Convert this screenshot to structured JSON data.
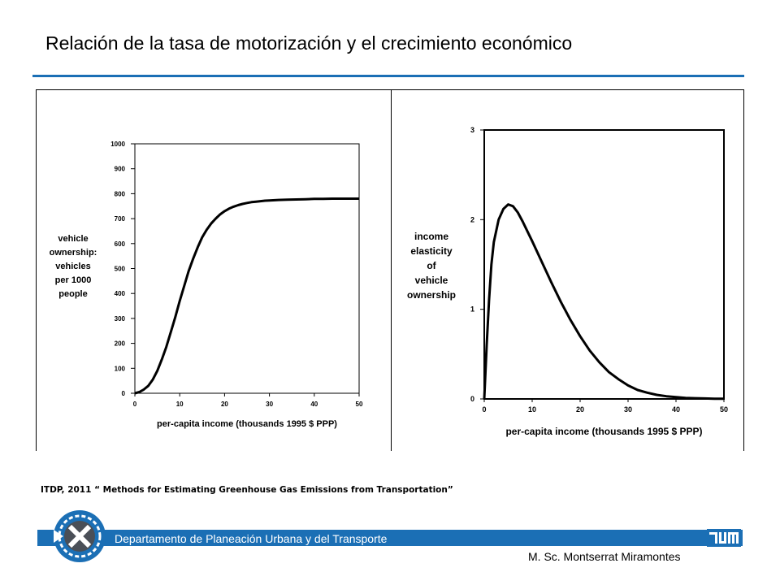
{
  "slide": {
    "title": "Relación de la tasa de motorización y el crecimiento económico",
    "citation": "ITDP, 2011 “ Methods for Estimating Greenhouse Gas Emissions from Transportation”",
    "footer_department": "Departamento de Planeación Urbana y del Transporte",
    "footer_author": "M. Sc. Montserrat Miramontes",
    "accent_color": "#1b6fb5",
    "logo_icon": "tum-logo-icon",
    "emblem_icon": "department-emblem-icon"
  },
  "chart_data": [
    {
      "type": "line",
      "ylabel_lines": [
        "vehicle",
        "ownership:",
        "vehicles",
        "per 1000",
        "people"
      ],
      "xlabel": "per-capita income (thousands 1995 $ PPP)",
      "x_ticks": [
        "0",
        "10",
        "20",
        "30",
        "40",
        "50"
      ],
      "y_ticks": [
        "0",
        "100",
        "200",
        "300",
        "400",
        "500",
        "600",
        "700",
        "800",
        "900",
        "1000"
      ],
      "xlim": [
        0,
        50
      ],
      "ylim": [
        0,
        1000
      ],
      "grid": false,
      "series": [
        {
          "x": [
            0,
            1,
            2,
            3,
            4,
            5,
            6,
            7,
            8,
            9,
            10,
            11,
            12,
            13,
            14,
            15,
            16,
            17,
            18,
            19,
            20,
            21,
            22,
            23,
            24,
            25,
            26,
            27,
            28,
            29,
            30,
            32,
            34,
            36,
            38,
            40,
            42,
            44,
            46,
            48,
            50
          ],
          "y": [
            0,
            5,
            15,
            30,
            55,
            90,
            135,
            185,
            245,
            305,
            370,
            430,
            490,
            540,
            585,
            625,
            655,
            680,
            700,
            717,
            730,
            740,
            748,
            754,
            759,
            763,
            766,
            768,
            770,
            772,
            773,
            775,
            776,
            777,
            778,
            779,
            779,
            780,
            780,
            780,
            780
          ]
        }
      ]
    },
    {
      "type": "line",
      "ylabel_lines": [
        "income",
        "elasticity",
        "of",
        "vehicle",
        "ownership"
      ],
      "xlabel": "per-capita income (thousands 1995 $ PPP)",
      "x_ticks": [
        "0",
        "10",
        "20",
        "30",
        "40",
        "50"
      ],
      "y_ticks": [
        "0",
        "1",
        "2",
        "3"
      ],
      "xlim": [
        0,
        50
      ],
      "ylim": [
        0,
        3
      ],
      "grid": false,
      "series": [
        {
          "x": [
            0,
            0.5,
            1,
            1.5,
            2,
            3,
            4,
            5,
            6,
            7,
            8,
            9,
            10,
            12,
            14,
            16,
            18,
            20,
            22,
            24,
            26,
            28,
            30,
            32,
            34,
            36,
            38,
            40,
            42,
            44,
            46,
            48,
            50
          ],
          "y": [
            0,
            0.6,
            1.1,
            1.5,
            1.75,
            2.0,
            2.12,
            2.17,
            2.15,
            2.08,
            1.98,
            1.87,
            1.76,
            1.53,
            1.3,
            1.08,
            0.88,
            0.7,
            0.54,
            0.41,
            0.3,
            0.22,
            0.15,
            0.1,
            0.07,
            0.045,
            0.03,
            0.02,
            0.012,
            0.008,
            0.005,
            0.003,
            0.002
          ]
        }
      ]
    }
  ]
}
